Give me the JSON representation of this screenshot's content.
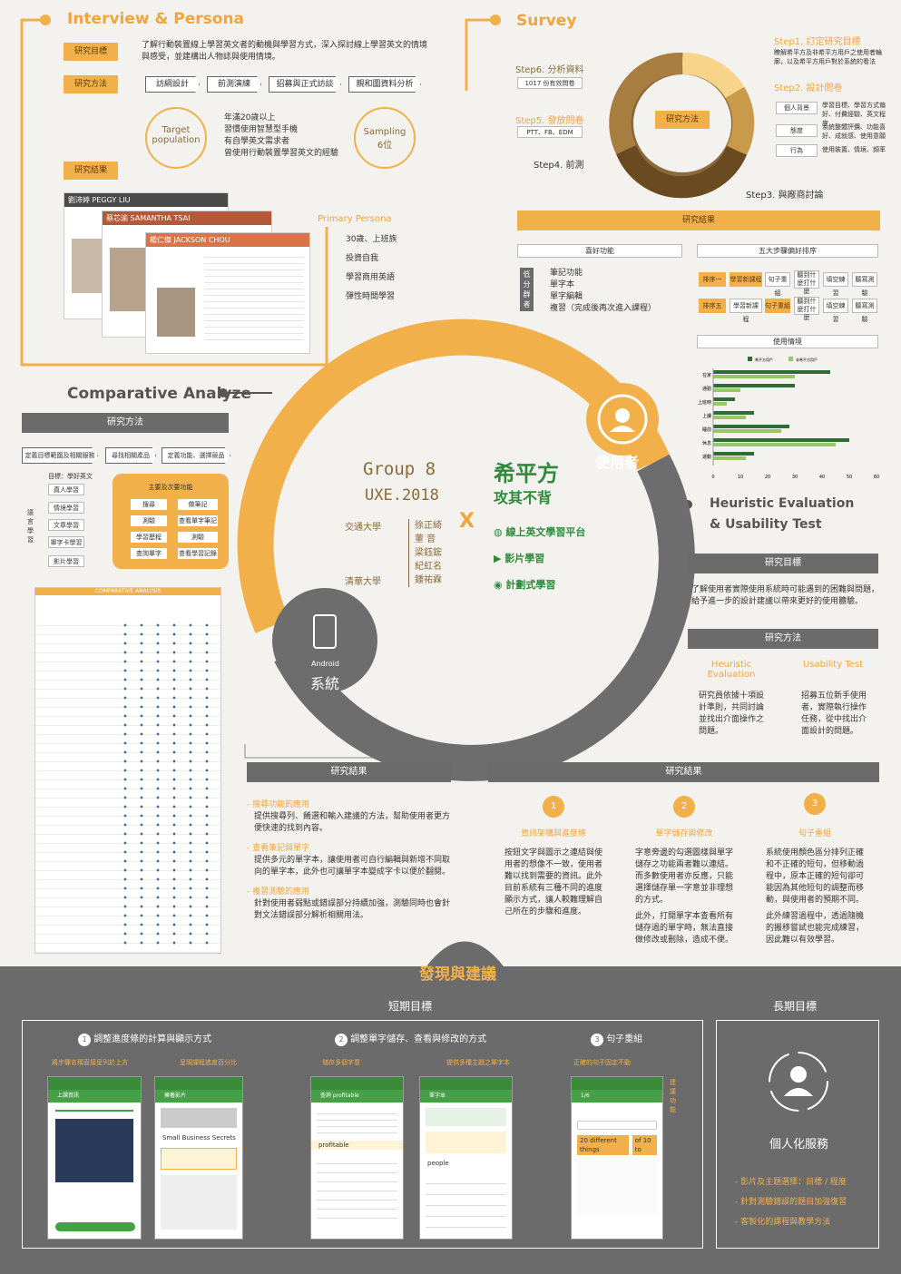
{
  "interview": {
    "title": "Interview & Persona",
    "label_goal": "研究目標",
    "goal_text": "了解行動裝置線上學習英文者的動機與學習方式，深入探討線上學習英文的情境與感受，並建構出人物誌與使用情境。",
    "label_method": "研究方法",
    "steps": [
      "訪綱設計",
      "前測演練",
      "招募與正式訪談",
      "親和圖資料分析"
    ],
    "target": "Target population",
    "target_text": [
      "年滿20歲以上",
      "習慣使用智慧型手機",
      "有自學英文需求者",
      "曾使用行動裝置學習英文的經驗"
    ],
    "sampling": "Sampling",
    "sampling_val": "6位",
    "label_result": "研究結果",
    "persona_names": [
      "劉沛婷 PEGGY LIU",
      "蔡芯渝 SAMANTHA TSAI",
      "楊仁傑 JACKSON CHOU"
    ],
    "primary": "Primary Persona",
    "persona_traits": [
      "30歲、上班族",
      "投資自我",
      "學習商用英語",
      "彈性時間學習"
    ]
  },
  "survey": {
    "title": "Survey",
    "step1": "Step1. 訂定研究目標",
    "step1_text": "瞭解希平方及非希平方用戶之使用者輪廓，以及希平方用戶對於系統的看法",
    "step2": "Step2. 設計問卷",
    "q_items": [
      {
        "label": "個人背景",
        "desc": "學習目標、學習方式偏好、付費經驗、英文程度"
      },
      {
        "label": "態度",
        "desc": "系統整體評價、功能喜好、成就感、使用意願"
      },
      {
        "label": "行為",
        "desc": "使用裝置、情境、頻率"
      }
    ],
    "step3": "Step3. 與廠商討論",
    "step4": "Step4. 前測",
    "step5": "Step5. 發放問卷",
    "step5_val": "PTT、FB、EDM",
    "step6": "Step6. 分析資料",
    "step6_val": "1017 份有效問卷",
    "center": "研究方法",
    "result": "研究結果",
    "fav": "喜好功能",
    "low_group": "低分群者",
    "fav_items": [
      "筆記功能",
      "單字本",
      "單字編輯",
      "複習（完成後再次進入課程）"
    ],
    "top5": "五大步驟偏好排序",
    "rank1": "排序一",
    "rank5": "排序五",
    "rank_items_1": [
      "學習新課程",
      "句子重組",
      "聽到什麼打什麼",
      "填空練習",
      "聽寫測驗"
    ],
    "rank_items_5": [
      "學習新課程",
      "句子重組",
      "聽到什麼打什麼",
      "填空練習",
      "聽寫測驗"
    ],
    "usage": "使用情境",
    "legend": [
      "希平方用戶",
      "非希平方用戶"
    ]
  },
  "chart_data": {
    "type": "bar",
    "categories": [
      "在家",
      "通勤",
      "上班時",
      "上課",
      "睡前",
      "休息",
      "運動"
    ],
    "series": [
      {
        "name": "希平方用戶",
        "values": [
          43,
          30,
          8,
          15,
          28,
          50,
          15
        ]
      },
      {
        "name": "非希平方用戶",
        "values": [
          30,
          10,
          5,
          12,
          25,
          45,
          12
        ]
      }
    ],
    "xlim": [
      0,
      60
    ],
    "xticks": [
      "0",
      "10",
      "20",
      "30",
      "40",
      "50",
      "60"
    ]
  },
  "comparative": {
    "title": "Comparative Analyze",
    "method": "研究方法",
    "steps": [
      "定義目標範圍及相關服務",
      "尋找相關產品",
      "定義功能、選擇競品"
    ],
    "goal": "目標：學好英文",
    "left_items": [
      "真人學習",
      "情境學習",
      "文章學習",
      "單字卡學習",
      "影片學習"
    ],
    "side": "語言學習",
    "main_func": "主要及次要功能",
    "funcs": [
      "搜尋",
      "做筆記",
      "測驗",
      "查看單字筆記",
      "學習歷程",
      "測驗",
      "查詢單字",
      "查看學習記錄"
    ],
    "table_title": "COMPARATIVE ANALYSIS"
  },
  "center": {
    "group": "Group 8",
    "year": "UXE.2018",
    "school1": "交通大學",
    "school2": "清華大學",
    "members": [
      "徐正綺",
      "董 音",
      "梁鈺鋐",
      "紀虹名",
      "鍾祐霖"
    ],
    "x": "X",
    "brand": "希平方",
    "slogan": "攻其不背",
    "features": [
      "線上英文學習平台",
      "影片學習",
      "計劃式學習"
    ],
    "user": "使用者",
    "system_en": "Android",
    "system": "系統"
  },
  "heuristic": {
    "title1": "Heuristic Evaluation",
    "title2": "& Usability Test",
    "goal": "研究目標",
    "goal_text": "了解使用者實際使用系統時可能遇到的困難與問題，給予進一步的設計建議以帶來更好的使用體驗。",
    "method": "研究方法",
    "he": "Heuristic Evaluation",
    "he_text": "研究員依據十項設計準則，共同討論並找出介面操作之問題。",
    "ut": "Usability Test",
    "ut_text": "招募五位新手使用者，實際執行操作任務，從中找出介面設計的問題。"
  },
  "results_left": {
    "title": "研究結果",
    "items": [
      {
        "h": "- 搜尋功能的應用",
        "t": "提供搜尋列、餚選和輸入建議的方法，幫助使用者更方便快速的找到內容。"
      },
      {
        "h": "- 查看筆記與單字",
        "t": "提供多元的單字本，讓使用者可自行編輯與新增不同取向的單字本，此外也可讓單字本變成字卡以便於翻閱。"
      },
      {
        "h": "- 複習測驗的應用",
        "t": "針對使用者弱點或錯誤部分持續加強，測驗同時也會針對文法錯誤部分解析相關用法。"
      }
    ]
  },
  "results_right": {
    "title": "研究結果",
    "items": [
      {
        "n": "1",
        "h": "資訊架構與進度條",
        "t": "按鈕文字與圖示之連結與使用者的想像不一致，使用者難以找到需要的資訊。此外目前系統有三種不同的進度顯示方式，讓人較難理解自己所在的步驟和進度。"
      },
      {
        "n": "2",
        "h": "單字儲存與修改",
        "t": "字意旁邊的勾選圖樣與單字儲存之功能兩者難以連結。而多數使用者亦反應，只能選擇儲存單一字意並非理想的方式。",
        "t2": "此外，打開單字本查看所有儲存過的單字時，無法直接做修改或刪除，造成不便。"
      },
      {
        "n": "3",
        "h": "句子重組",
        "t": "系統使用顏色區分排列正確和不正確的短句，但移動過程中，原本正確的短句卻可能因為其他短句的調整而移動，與使用者的預期不同。",
        "t2": "此外練習過程中，透過隨機的搬移嘗試也能完成練習，因此難以有效學習。"
      }
    ]
  },
  "findings": {
    "title": "發現與建議",
    "short": "短期目標",
    "long": "長期目標",
    "s1": "調整進度條的計算與顯示方式",
    "s2": "調整單字儲存、查看與修改的方式",
    "s3": "句子重組",
    "n1": "1",
    "n2": "2",
    "n3": "3",
    "notes": [
      "將步驟名稱直接呈列於上方",
      "呈現課程進度百分比",
      "儲存多個字意",
      "提供多種主題之單字本",
      "正確的句子固定不動"
    ],
    "side_note": "建議功能",
    "long_title": "個人化服務",
    "long_items": [
      "- 影片及主題選擇：目標 / 程度",
      "- 針對測驗錯誤的題目加強復習",
      "- 客製化的課程與教學方法"
    ],
    "phone_texts": [
      "上課資訊",
      "擁著影片",
      "查詢 profitable",
      "單字本",
      "1/6",
      "Small Business Secrets",
      "profitable",
      "people",
      "20 different things",
      "of 10 to"
    ]
  }
}
